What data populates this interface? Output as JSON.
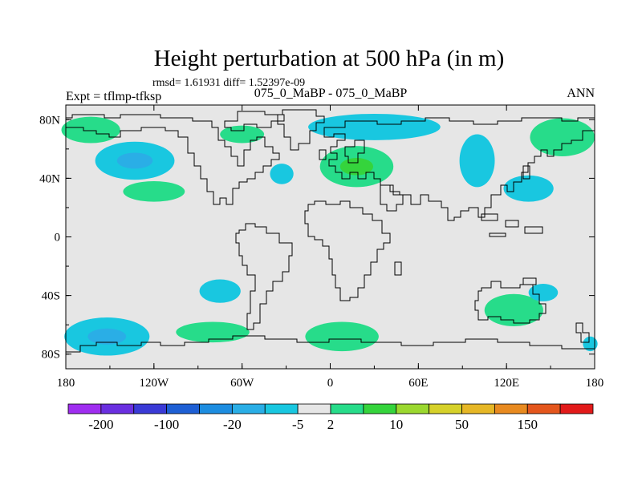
{
  "chart_data": {
    "type": "contour map",
    "title": "Height perturbation at 500 hPa (in m)",
    "stats_line": "rmsd= 1.61931 diff= 1.52397e-09",
    "left_label": "Expt = tflmp-tfksp",
    "center_label": "075_0_MaBP - 075_0_MaBP",
    "right_label": "ANN",
    "xlim": [
      -180,
      180
    ],
    "ylim": [
      -90,
      90
    ],
    "x_ticks": [
      {
        "value": -180,
        "label": "180"
      },
      {
        "value": -120,
        "label": "120W"
      },
      {
        "value": -60,
        "label": "60W"
      },
      {
        "value": 0,
        "label": "0"
      },
      {
        "value": 60,
        "label": "60E"
      },
      {
        "value": 120,
        "label": "120E"
      },
      {
        "value": 180,
        "label": "180"
      }
    ],
    "y_ticks": [
      {
        "value": 80,
        "label": "80N"
      },
      {
        "value": 40,
        "label": "40N"
      },
      {
        "value": 0,
        "label": "0"
      },
      {
        "value": -40,
        "label": "40S"
      },
      {
        "value": -80,
        "label": "80S"
      }
    ],
    "colorbar": {
      "colors": [
        "#9f2df0",
        "#6a2fe0",
        "#3a3ad6",
        "#1e5fd4",
        "#1d8de0",
        "#2aaee6",
        "#19c7e0",
        "#e6e6e6",
        "#27dc8a",
        "#35d43c",
        "#9bd82f",
        "#d6d12a",
        "#e6b726",
        "#e88a20",
        "#e4561d",
        "#e21a1a"
      ],
      "labels": [
        {
          "after_box": 1,
          "text": "-200"
        },
        {
          "after_box": 3,
          "text": "-100"
        },
        {
          "after_box": 5,
          "text": "-20"
        },
        {
          "after_box": 7,
          "text": "-5"
        },
        {
          "after_box": 8,
          "text": "2"
        },
        {
          "after_box": 10,
          "text": "10"
        },
        {
          "after_box": 12,
          "text": "50"
        },
        {
          "after_box": 14,
          "text": "150"
        }
      ]
    },
    "anomalies": [
      {
        "lon": -163,
        "lat": 73,
        "rlon": 20,
        "rlat": 9,
        "sign": "pos",
        "value": 5
      },
      {
        "lon": -133,
        "lat": 52,
        "rlon": 27,
        "rlat": 13,
        "sign": "neg",
        "value": -10
      },
      {
        "lon": -120,
        "lat": 31,
        "rlon": 21,
        "rlat": 7,
        "sign": "pos",
        "value": 5
      },
      {
        "lon": -60,
        "lat": 70,
        "rlon": 15,
        "rlat": 6,
        "sign": "pos",
        "value": 4
      },
      {
        "lon": -33,
        "lat": 43,
        "rlon": 8,
        "rlat": 7,
        "sign": "neg",
        "value": -6
      },
      {
        "lon": 18,
        "lat": 48,
        "rlon": 25,
        "rlat": 14,
        "sign": "pos",
        "value": 12
      },
      {
        "lon": 30,
        "lat": 75,
        "rlon": 45,
        "rlat": 9,
        "sign": "neg",
        "value": -7
      },
      {
        "lon": 100,
        "lat": 52,
        "rlon": 12,
        "rlat": 18,
        "sign": "neg",
        "value": -6
      },
      {
        "lon": 135,
        "lat": 33,
        "rlon": 17,
        "rlat": 9,
        "sign": "neg",
        "value": -6
      },
      {
        "lon": 158,
        "lat": 68,
        "rlon": 22,
        "rlat": 13,
        "sign": "pos",
        "value": 5
      },
      {
        "lon": -152,
        "lat": -68,
        "rlon": 29,
        "rlat": 13,
        "sign": "neg",
        "value": -12
      },
      {
        "lon": -75,
        "lat": -37,
        "rlon": 14,
        "rlat": 8,
        "sign": "neg",
        "value": -6
      },
      {
        "lon": -80,
        "lat": -65,
        "rlon": 25,
        "rlat": 7,
        "sign": "pos",
        "value": 4
      },
      {
        "lon": 8,
        "lat": -68,
        "rlon": 25,
        "rlat": 10,
        "sign": "pos",
        "value": 5
      },
      {
        "lon": 125,
        "lat": -50,
        "rlon": 20,
        "rlat": 11,
        "sign": "pos",
        "value": 5
      },
      {
        "lon": 145,
        "lat": -38,
        "rlon": 10,
        "rlat": 6,
        "sign": "neg",
        "value": -5
      },
      {
        "lon": 177,
        "lat": -73,
        "rlon": 5,
        "rlat": 5,
        "sign": "neg",
        "value": -5
      }
    ]
  }
}
